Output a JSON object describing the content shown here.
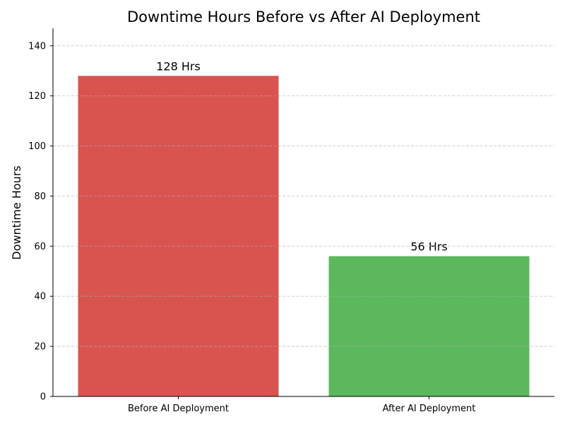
{
  "chart_data": {
    "type": "bar",
    "title": "Downtime Hours Before vs After AI Deployment",
    "xlabel": "",
    "ylabel": "Downtime Hours",
    "categories": [
      "Before AI Deployment",
      "After AI Deployment"
    ],
    "values": [
      128,
      56
    ],
    "data_labels": [
      "128 Hrs",
      "56 Hrs"
    ],
    "colors": [
      "#d9534f",
      "#5cb85c"
    ],
    "ylim": [
      0,
      147
    ],
    "yticks": [
      0,
      20,
      40,
      60,
      80,
      100,
      120,
      140
    ],
    "grid": "y-dashed",
    "legend": "none"
  }
}
